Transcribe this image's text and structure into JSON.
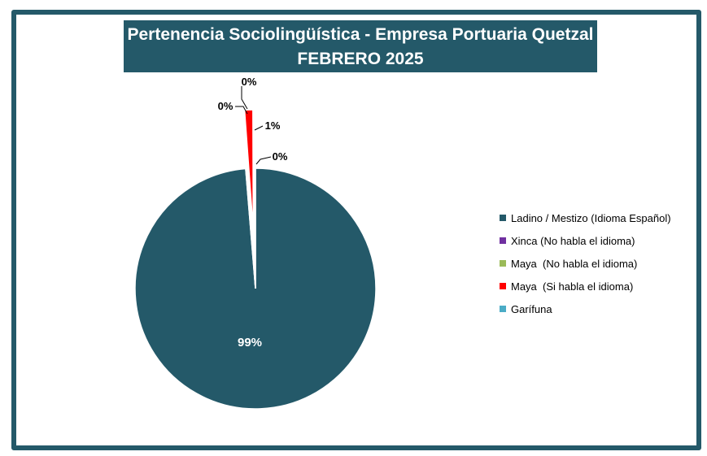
{
  "chart_data": {
    "type": "pie",
    "title": [
      "Pertenencia Sociolingüística - Empresa Portuaria Quetzal",
      "FEBRERO 2025"
    ],
    "categories": [
      "Ladino / Mestizo (Idioma Español)",
      "Xinca (No habla el idioma)",
      "Maya  (No habla el idioma)",
      "Maya  (Si habla el idioma)",
      "Garífuna"
    ],
    "values": [
      98.7,
      0.1,
      0.05,
      1.1,
      0.05
    ],
    "data_labels": [
      "99%",
      "0%",
      "0%",
      "1%",
      "0%"
    ],
    "colors": [
      "#245969",
      "#7030A0",
      "#9BBB59",
      "#FF0000",
      "#4BACC6"
    ],
    "legend_position": "right"
  }
}
